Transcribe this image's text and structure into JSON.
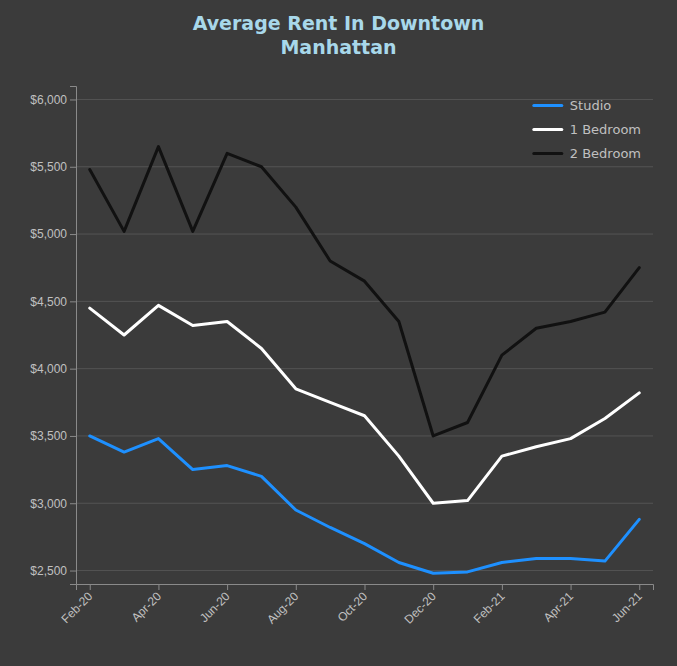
{
  "chart_data": {
    "type": "line",
    "title": "Average Rent In Downtown\nManhattan",
    "categories": [
      "Feb-20",
      null,
      "Apr-20",
      null,
      "Jun-20",
      null,
      "Aug-20",
      null,
      "Oct-20",
      null,
      "Dec-20",
      null,
      "Feb-21",
      null,
      "Apr-21",
      null,
      "Jun-21"
    ],
    "series": [
      {
        "name": "Studio",
        "color": "#1e90ff",
        "values": [
          3500,
          3380,
          3480,
          3250,
          3280,
          3200,
          2950,
          2820,
          2700,
          2560,
          2480,
          2490,
          2560,
          2590,
          2590,
          2570,
          2880
        ]
      },
      {
        "name": "1 Bedroom",
        "color": "#ffffff",
        "values": [
          4450,
          4250,
          4470,
          4320,
          4350,
          4150,
          3850,
          3750,
          3650,
          3350,
          3000,
          3020,
          3350,
          3420,
          3480,
          3630,
          3820
        ]
      },
      {
        "name": "2 Bedroom",
        "color": "#111111",
        "values": [
          5480,
          5020,
          5650,
          5020,
          5600,
          5500,
          5200,
          4800,
          4650,
          4350,
          3500,
          3600,
          4100,
          4300,
          4350,
          4420,
          4750
        ]
      }
    ],
    "ylim": [
      2400,
      6100
    ],
    "yticks": [
      {
        "value": 2500,
        "label": "$2,500"
      },
      {
        "value": 3000,
        "label": "$3,000"
      },
      {
        "value": 3500,
        "label": "$3,500"
      },
      {
        "value": 4000,
        "label": "$4,000"
      },
      {
        "value": 4500,
        "label": "$4,500"
      },
      {
        "value": 5000,
        "label": "$5,000"
      },
      {
        "value": 5500,
        "label": "$5,500"
      },
      {
        "value": 6000,
        "label": "$6,000"
      }
    ],
    "grid": true,
    "legend": "upper right"
  }
}
